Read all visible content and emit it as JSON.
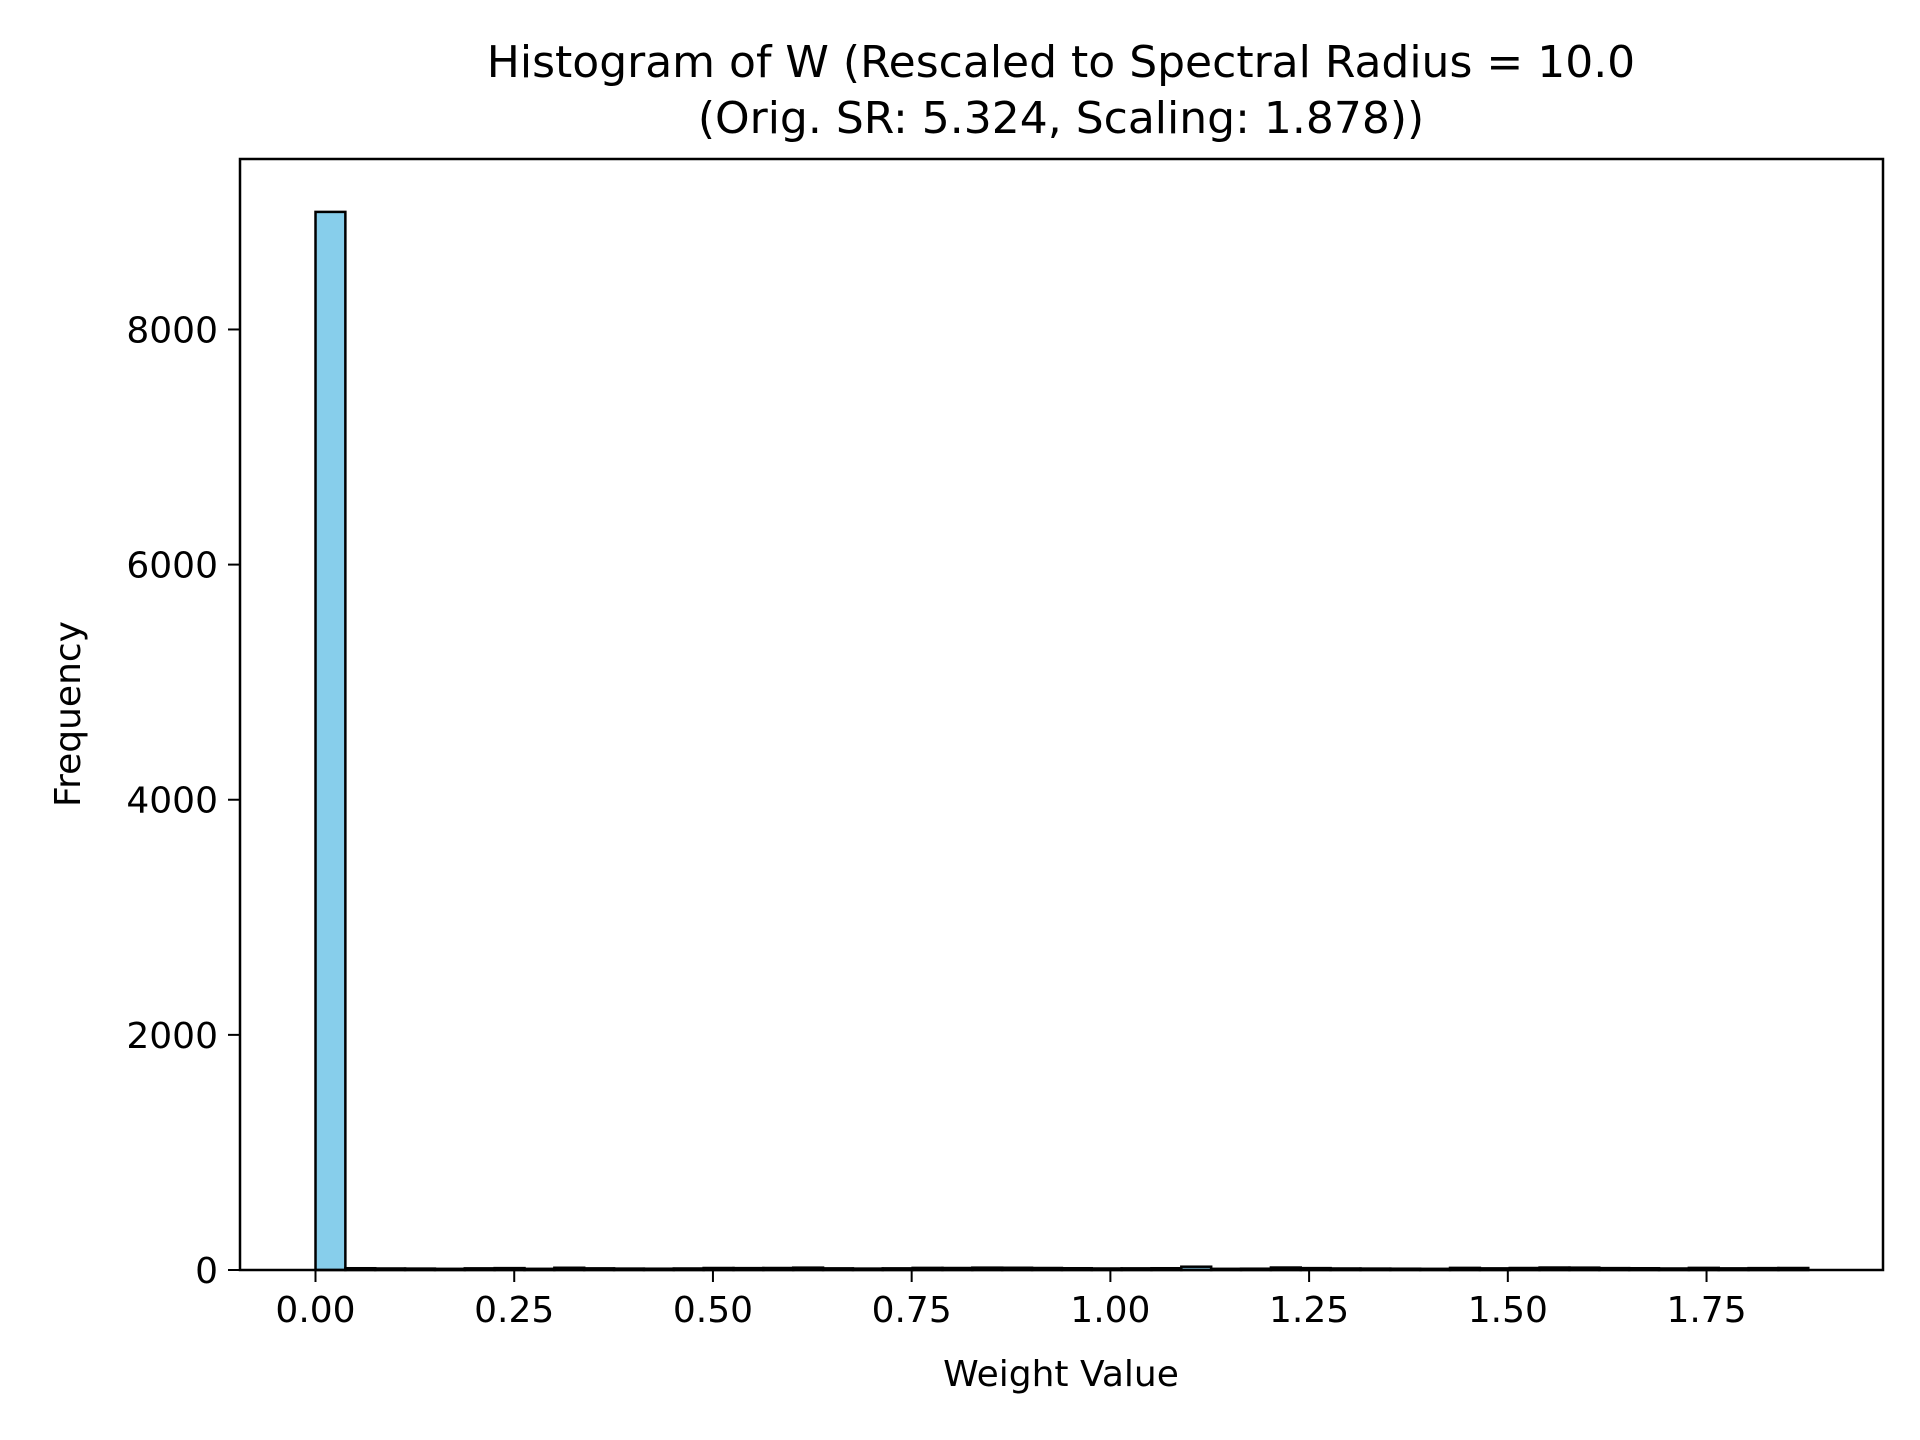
{
  "chart_data": {
    "type": "bar",
    "title_lines": [
      "Histogram of W (Rescaled to Spectral Radius = 10.0",
      "(Orig. SR: 5.324, Scaling: 1.878))"
    ],
    "xlabel": "Weight Value",
    "ylabel": "Frequency",
    "xlim": [
      -0.095,
      1.972
    ],
    "ylim": [
      0,
      9450
    ],
    "x_ticks": [
      0.0,
      0.25,
      0.5,
      0.75,
      1.0,
      1.25,
      1.5,
      1.75
    ],
    "x_tick_labels": [
      "0.00",
      "0.25",
      "0.50",
      "0.75",
      "1.00",
      "1.25",
      "1.50",
      "1.75"
    ],
    "y_ticks": [
      0,
      2000,
      4000,
      6000,
      8000
    ],
    "y_tick_labels": [
      "0",
      "2000",
      "4000",
      "6000",
      "8000"
    ],
    "bin_start": 0.0,
    "bin_width": 0.03756,
    "values": [
      9000,
      15,
      13,
      12,
      10,
      14,
      16,
      10,
      19,
      14,
      12,
      11,
      13,
      17,
      16,
      17,
      20,
      14,
      12,
      14,
      18,
      17,
      20,
      19,
      17,
      15,
      13,
      14,
      15,
      28,
      10,
      11,
      21,
      16,
      13,
      12,
      11,
      10,
      18,
      14,
      17,
      21,
      20,
      16,
      15,
      13,
      18,
      14,
      16,
      17
    ],
    "bar_color": "#87ceeb",
    "edge_color": "#000000",
    "grid": false
  }
}
